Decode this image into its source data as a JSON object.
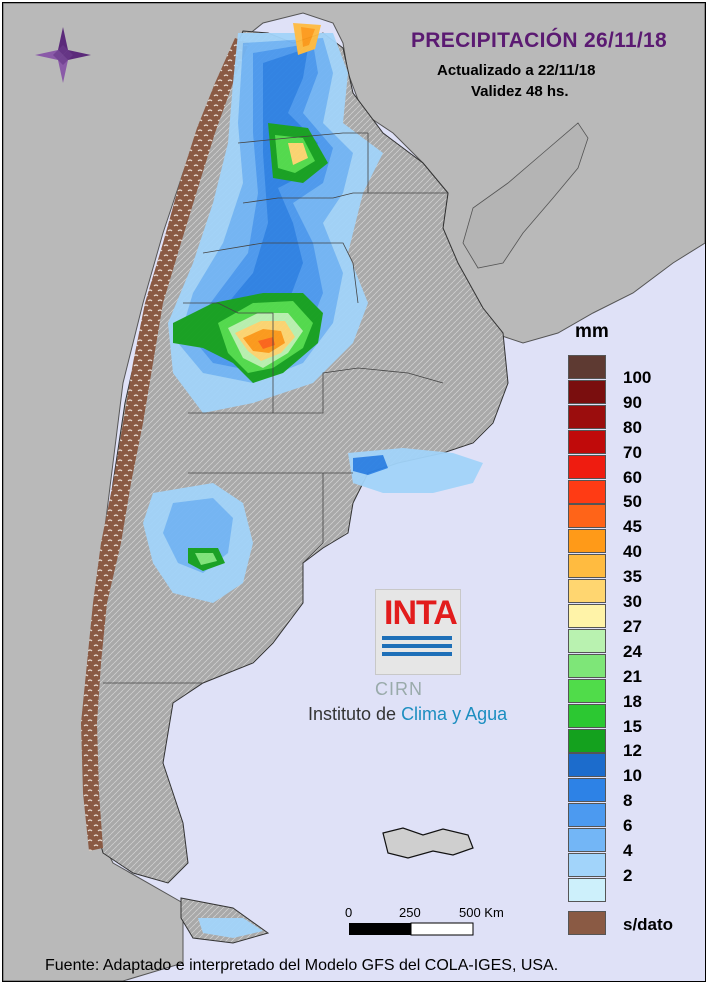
{
  "header": {
    "title": "PRECIPITACIÓN 26/11/18",
    "updated": "Actualizado a 22/11/18",
    "validity": "Validez 48 hs."
  },
  "legend": {
    "unit": "mm",
    "items": [
      {
        "label": "100",
        "color": "#7a0e0e"
      },
      {
        "label": "90",
        "color": "#9b0d0d"
      },
      {
        "label": "80",
        "color": "#c00a0a"
      },
      {
        "label": "70",
        "color": "#ef1c10"
      },
      {
        "label": "60",
        "color": "#ff3b14"
      },
      {
        "label": "50",
        "color": "#ff6418"
      },
      {
        "label": "45",
        "color": "#ff9a18"
      },
      {
        "label": "40",
        "color": "#ffbb40"
      },
      {
        "label": "35",
        "color": "#ffd670"
      },
      {
        "label": "30",
        "color": "#fff3a8"
      },
      {
        "label": "27",
        "color": "#b9f2b0"
      },
      {
        "label": "24",
        "color": "#7ee678"
      },
      {
        "label": "21",
        "color": "#50dc4a"
      },
      {
        "label": "18",
        "color": "#2cc832"
      },
      {
        "label": "15",
        "color": "#14a11e"
      },
      {
        "label": "12",
        "color": "#1c6ccc"
      },
      {
        "label": "10",
        "color": "#2d82e6"
      },
      {
        "label": "8",
        "color": "#4c9af0"
      },
      {
        "label": "6",
        "color": "#73b6f6"
      },
      {
        "label": "4",
        "color": "#a2d4fa"
      },
      {
        "label": "2",
        "color": "#cdf0fb"
      }
    ],
    "top_color": "#5e3a32",
    "no_data_label": "s/dato",
    "no_data_color": "#8a5a44"
  },
  "logo": {
    "word": "INTA",
    "subword": "CIRN",
    "institute_prefix": "Instituto de ",
    "institute_highlight": "Clima y Agua"
  },
  "scale_bar": {
    "ticks": [
      "0",
      "250",
      "500 Km"
    ]
  },
  "footer": "Fuente: Adaptado e interpretado del Modelo GFS del COLA-IGES, USA."
}
